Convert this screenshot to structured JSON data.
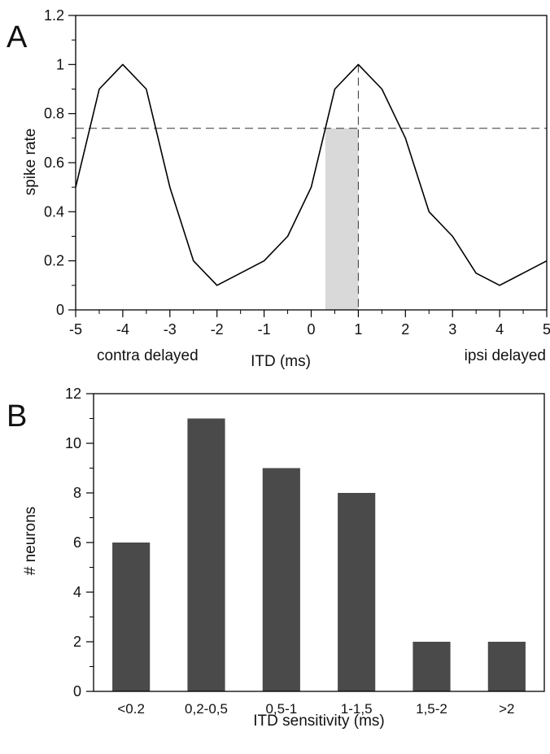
{
  "chart_data": [
    {
      "panel": "A",
      "type": "line",
      "xlabel": "ITD (ms)",
      "ylabel": "spike rate",
      "x_note_left": "contra delayed",
      "x_note_right": "ipsi delayed",
      "xlim": [
        -5,
        5
      ],
      "ylim": [
        0,
        1.2
      ],
      "x_ticks": [
        -5,
        -4,
        -3,
        -2,
        -1,
        0,
        1,
        2,
        3,
        4,
        5
      ],
      "y_ticks": [
        0,
        0.2,
        0.4,
        0.6,
        0.8,
        1,
        1.2
      ],
      "x_tick_labels": [
        "-5",
        "-4",
        "-3",
        "-2",
        "-1",
        "0",
        "1",
        "2",
        "3",
        "4",
        "5"
      ],
      "y_tick_labels": [
        "0",
        "0.2",
        "0.4",
        "0.6",
        "0.8",
        "1",
        "1.2"
      ],
      "series": [
        {
          "x": [
            -5,
            -4.5,
            -4,
            -3.5,
            -3,
            -2.5,
            -2,
            -1.5,
            -1,
            -0.5,
            0,
            0.5,
            1,
            1.5,
            2,
            2.5,
            3,
            3.5,
            4,
            4.5,
            5
          ],
          "y": [
            0.5,
            0.9,
            1.0,
            0.9,
            0.5,
            0.2,
            0.1,
            0.15,
            0.2,
            0.3,
            0.5,
            0.9,
            1.0,
            0.9,
            0.7,
            0.4,
            0.3,
            0.15,
            0.1,
            0.15,
            0.2
          ],
          "color": "#000000"
        }
      ],
      "threshold_line": {
        "y": 0.74,
        "style": "dashed"
      },
      "peak_marker": {
        "x": 1,
        "style": "dashed"
      },
      "shaded_region": {
        "x": [
          0.3,
          1.0
        ],
        "y": [
          0,
          0.74
        ],
        "color": "#d9d9d9"
      },
      "grid": false
    },
    {
      "panel": "B",
      "type": "bar",
      "xlabel": "ITD sensitivity (ms)",
      "ylabel": "# neurons",
      "categories": [
        "<0.2",
        "0,2-0,5",
        "0,5-1",
        "1-1,5",
        "1,5-2",
        ">2"
      ],
      "values": [
        6,
        11,
        9,
        8,
        2,
        2
      ],
      "ylim": [
        0,
        12
      ],
      "y_ticks": [
        0,
        2,
        4,
        6,
        8,
        10,
        12
      ],
      "y_tick_labels": [
        "0",
        "2",
        "4",
        "6",
        "8",
        "10",
        "12"
      ],
      "bar_color": "#4a4a4a",
      "grid": false
    }
  ]
}
